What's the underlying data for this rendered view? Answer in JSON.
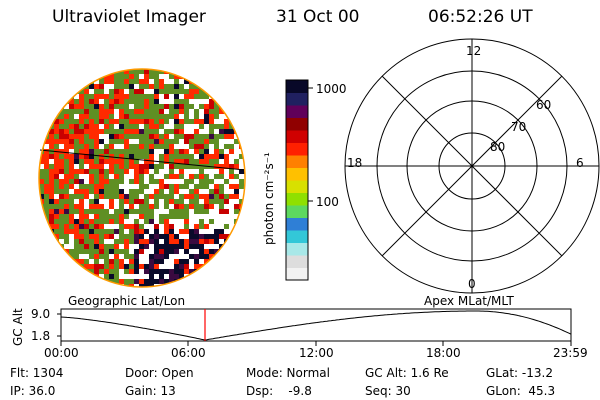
{
  "header": {
    "instrument": "Ultraviolet Imager",
    "date": "31 Oct 00",
    "time": "06:52:26 UT"
  },
  "colorbar": {
    "unit_label": "photon cm⁻²s⁻¹",
    "tick_labels": [
      "1000",
      "100"
    ],
    "colors": [
      "#f2f2f2",
      "#dddddd",
      "#a8e8e8",
      "#33c7d8",
      "#2f7fd6",
      "#5dd85f",
      "#8fe000",
      "#d8e000",
      "#ffc000",
      "#ff8000",
      "#ff2000",
      "#d00000",
      "#900000",
      "#60005a",
      "#202060",
      "#080828"
    ]
  },
  "polar_plot": {
    "mlt_labels": [
      "12",
      "18",
      "6",
      "0"
    ],
    "lat_labels": [
      "60",
      "70",
      "80"
    ]
  },
  "timeline": {
    "left_label": "Geographic Lat/Lon",
    "right_label": "Apex MLat/MLT",
    "axis_label": "GC Alt",
    "y_ticks": [
      "9.0",
      "1.8"
    ],
    "x_ticks": [
      "00:00",
      "06:00",
      "12:00",
      "18:00",
      "23:59"
    ],
    "marker_color": "#ff0000"
  },
  "info": {
    "flt": "Flt: 1304",
    "ip": "IP: 36.0",
    "door": "Door: Open",
    "gain": "Gain: 13",
    "mode": "Mode: Normal",
    "dsp": "Dsp:    -9.8",
    "gcalt": "GC Alt: 1.6 Re",
    "seq": "Seq: 30",
    "glat": "GLat: -13.2",
    "glon": "GLon:  45.3"
  }
}
